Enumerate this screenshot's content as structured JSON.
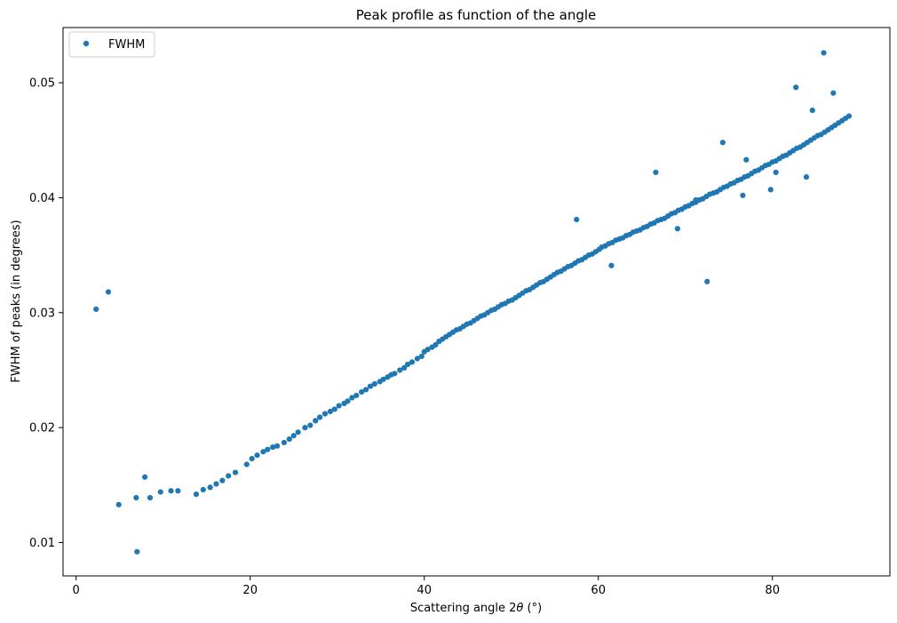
{
  "chart_data": {
    "type": "scatter",
    "title": "Peak profile as function of the angle",
    "xlabel_prefix": "Scattering angle 2",
    "xlabel_symbol": "θ",
    "xlabel_suffix": " (°)",
    "ylabel": "FWHM of peaks (in degrees)",
    "xlim": [
      -1.5,
      93.5
    ],
    "ylim": [
      0.0071,
      0.0548
    ],
    "x_ticks": [
      0,
      20,
      40,
      60,
      80
    ],
    "y_ticks": [
      0.01,
      0.02,
      0.03,
      0.04,
      0.05
    ],
    "x_tick_labels": [
      "0",
      "20",
      "40",
      "60",
      "80"
    ],
    "y_tick_labels": [
      "0.01",
      "0.02",
      "0.03",
      "0.04",
      "0.05"
    ],
    "grid": false,
    "legend": {
      "placement": "top-left",
      "entries": [
        "FWHM"
      ]
    },
    "series": [
      {
        "name": "FWHM",
        "color": "#1f77b4",
        "marker": "circle",
        "x": [
          2.3,
          3.7,
          4.9,
          6.9,
          7.0,
          7.9,
          8.5,
          9.7,
          10.9,
          11.7,
          13.8,
          14.6,
          15.4,
          16.1,
          16.8,
          17.5,
          18.3,
          19.6,
          20.2,
          20.8,
          21.5,
          22.0,
          22.6,
          23.1,
          23.9,
          24.5,
          25.0,
          25.5,
          26.3,
          26.9,
          27.5,
          28.0,
          28.6,
          29.2,
          29.7,
          30.2,
          30.8,
          31.2,
          31.7,
          32.2,
          32.8,
          33.3,
          33.8,
          34.3,
          34.9,
          35.3,
          35.8,
          36.2,
          36.6,
          37.2,
          37.7,
          38.1,
          38.6,
          39.2,
          39.7,
          40.0,
          40.4,
          40.9,
          41.3,
          41.7,
          42.1,
          42.5,
          42.9,
          43.3,
          43.7,
          44.1,
          44.5,
          44.9,
          45.3,
          45.7,
          46.1,
          46.5,
          46.9,
          47.3,
          47.7,
          48.1,
          48.5,
          48.9,
          49.3,
          49.7,
          50.1,
          50.5,
          50.9,
          51.3,
          51.7,
          52.1,
          52.5,
          52.9,
          53.3,
          53.7,
          54.1,
          54.5,
          54.9,
          55.3,
          55.7,
          56.1,
          56.5,
          56.9,
          57.3,
          57.7,
          58.1,
          58.5,
          58.9,
          59.3,
          59.7,
          60.1,
          60.4,
          60.8,
          61.2,
          61.6,
          62.0,
          62.4,
          62.8,
          63.2,
          63.6,
          64.0,
          64.4,
          64.8,
          65.2,
          65.6,
          66.0,
          66.4,
          66.8,
          67.2,
          67.6,
          68.0,
          68.4,
          68.8,
          69.2,
          69.6,
          70.0,
          70.4,
          70.8,
          71.2,
          71.6,
          72.0,
          72.4,
          72.8,
          73.2,
          73.6,
          74.0,
          74.4,
          74.8,
          75.2,
          75.6,
          76.0,
          76.4,
          76.8,
          77.2,
          77.6,
          78.0,
          78.4,
          78.8,
          79.2,
          79.6,
          80.0,
          80.4,
          80.8,
          81.2,
          81.6,
          82.0,
          82.4,
          82.8,
          83.2,
          83.6,
          84.0,
          84.4,
          84.8,
          85.2,
          85.6,
          86.0,
          86.4,
          86.8,
          87.2,
          87.6,
          88.0,
          88.4,
          88.8,
          66.6,
          74.3,
          57.5,
          61.5,
          72.5,
          79.8,
          82.7,
          85.9,
          87.0,
          84.6,
          77.0,
          83.9,
          69.1,
          71.2,
          76.6,
          80.4
        ],
        "y": [
          0.0303,
          0.0318,
          0.0133,
          0.0139,
          0.0092,
          0.0157,
          0.0139,
          0.0144,
          0.0145,
          0.0145,
          0.0142,
          0.0146,
          0.0148,
          0.0151,
          0.0154,
          0.0158,
          0.0161,
          0.0168,
          0.0173,
          0.0176,
          0.0179,
          0.0181,
          0.0183,
          0.0184,
          0.0187,
          0.019,
          0.0193,
          0.0196,
          0.02,
          0.0202,
          0.0206,
          0.0209,
          0.0212,
          0.0214,
          0.0216,
          0.0219,
          0.0221,
          0.0223,
          0.0226,
          0.0228,
          0.0231,
          0.0233,
          0.0236,
          0.0238,
          0.024,
          0.0242,
          0.0244,
          0.0246,
          0.0247,
          0.025,
          0.0252,
          0.0255,
          0.0257,
          0.026,
          0.0262,
          0.0266,
          0.0268,
          0.027,
          0.0272,
          0.0275,
          0.0277,
          0.0279,
          0.0281,
          0.0283,
          0.0285,
          0.0286,
          0.0288,
          0.029,
          0.0291,
          0.0293,
          0.0295,
          0.0297,
          0.0298,
          0.03,
          0.0302,
          0.0303,
          0.0305,
          0.0307,
          0.0308,
          0.031,
          0.0311,
          0.0313,
          0.0315,
          0.0317,
          0.0319,
          0.032,
          0.0322,
          0.0324,
          0.0326,
          0.0327,
          0.0329,
          0.0331,
          0.0333,
          0.0335,
          0.0336,
          0.0338,
          0.034,
          0.0341,
          0.0343,
          0.0345,
          0.0346,
          0.0348,
          0.035,
          0.0351,
          0.0353,
          0.0355,
          0.0357,
          0.0358,
          0.036,
          0.0361,
          0.0363,
          0.0364,
          0.0365,
          0.0367,
          0.0368,
          0.037,
          0.0371,
          0.0372,
          0.0374,
          0.0375,
          0.0377,
          0.0378,
          0.038,
          0.0381,
          0.0382,
          0.0384,
          0.0386,
          0.0387,
          0.0389,
          0.039,
          0.0392,
          0.0393,
          0.0395,
          0.0396,
          0.0398,
          0.0399,
          0.0401,
          0.0403,
          0.0404,
          0.0405,
          0.0407,
          0.0409,
          0.041,
          0.0412,
          0.0413,
          0.0415,
          0.0416,
          0.0418,
          0.0419,
          0.0421,
          0.0423,
          0.0424,
          0.0426,
          0.0428,
          0.0429,
          0.0431,
          0.0432,
          0.0434,
          0.0436,
          0.0437,
          0.0439,
          0.0441,
          0.0443,
          0.0444,
          0.0446,
          0.0448,
          0.045,
          0.0452,
          0.0454,
          0.0455,
          0.0457,
          0.0459,
          0.0461,
          0.0463,
          0.0465,
          0.0467,
          0.0469,
          0.0471,
          0.0422,
          0.0448,
          0.0381,
          0.0341,
          0.0327,
          0.0407,
          0.0496,
          0.0526,
          0.0491,
          0.0476,
          0.0433,
          0.0418,
          0.0373,
          0.0398,
          0.0402,
          0.0422
        ]
      }
    ]
  }
}
